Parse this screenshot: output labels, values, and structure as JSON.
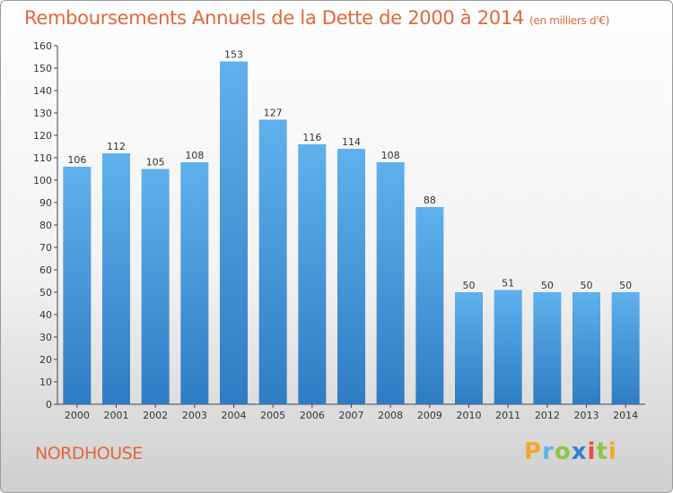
{
  "header": {
    "title": "Remboursements Annuels de la Dette de 2000 à 2014",
    "unit": "(en milliers d'€)"
  },
  "footer": {
    "commune": "NORDHOUSE",
    "logo": "Proxiti"
  },
  "chart_data": {
    "type": "bar",
    "title": "Remboursements Annuels de la Dette de 2000 à 2014",
    "subtitle": "(en milliers d'€)",
    "xlabel": "",
    "ylabel": "",
    "categories": [
      "2000",
      "2001",
      "2002",
      "2003",
      "2004",
      "2005",
      "2006",
      "2007",
      "2008",
      "2009",
      "2010",
      "2011",
      "2012",
      "2013",
      "2014"
    ],
    "values": [
      106,
      112,
      105,
      108,
      153,
      127,
      116,
      114,
      108,
      88,
      50,
      51,
      50,
      50,
      50
    ],
    "ylim": [
      0,
      160
    ],
    "yticks": [
      0,
      10,
      20,
      30,
      40,
      50,
      60,
      70,
      80,
      90,
      100,
      110,
      120,
      130,
      140,
      150,
      160
    ],
    "grid": false,
    "legend": "none",
    "bar_color": "#4a9ee0"
  }
}
